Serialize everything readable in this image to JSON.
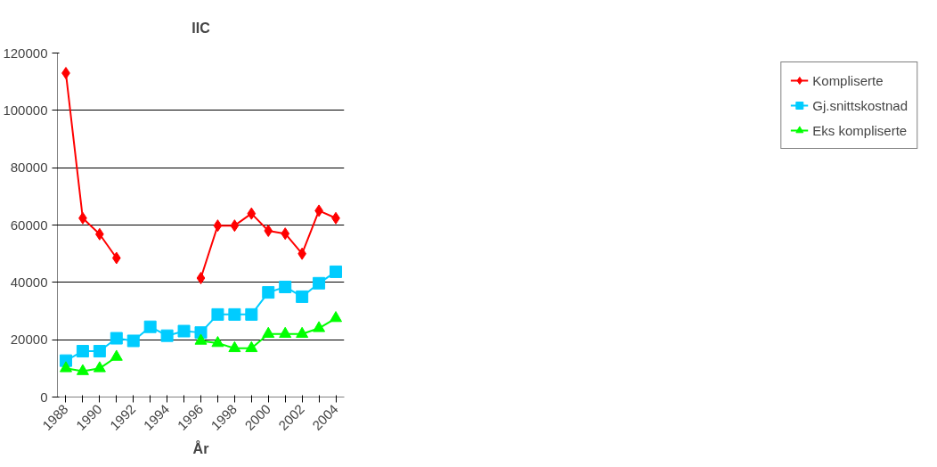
{
  "chart_data": {
    "type": "line",
    "title": "IIC",
    "xlabel": "År",
    "categories": [
      "1988",
      null,
      "1990",
      null,
      "1992",
      null,
      "1994",
      null,
      "1996",
      null,
      "1998",
      null,
      "2000",
      null,
      "2002",
      null,
      "2004"
    ],
    "series": [
      {
        "name": "Kompliserte",
        "color": "#ff0000",
        "marker": "diamond",
        "values": [
          113000,
          62400,
          56800,
          48500,
          null,
          null,
          null,
          null,
          41500,
          59800,
          59800,
          64000,
          58000,
          57000,
          50000,
          65000,
          62400
        ]
      },
      {
        "name": "Gj.snittskostnad",
        "color": "#00ccff",
        "marker": "square",
        "values": [
          12700,
          16000,
          16000,
          20500,
          19600,
          24500,
          21400,
          23000,
          22500,
          28800,
          28800,
          28800,
          36500,
          38400,
          35000,
          39700,
          43700
        ]
      },
      {
        "name": "Eks kompliserte",
        "color": "#00ff00",
        "marker": "triangle",
        "values": [
          10000,
          9000,
          10000,
          14000,
          null,
          null,
          null,
          null,
          19600,
          18800,
          17000,
          17000,
          22000,
          22000,
          22000,
          24000,
          27500
        ]
      }
    ],
    "ylim": [
      0,
      120000
    ],
    "yticks": [
      0,
      20000,
      40000,
      60000,
      80000,
      100000,
      120000
    ],
    "grid": "y",
    "legend": "right"
  }
}
